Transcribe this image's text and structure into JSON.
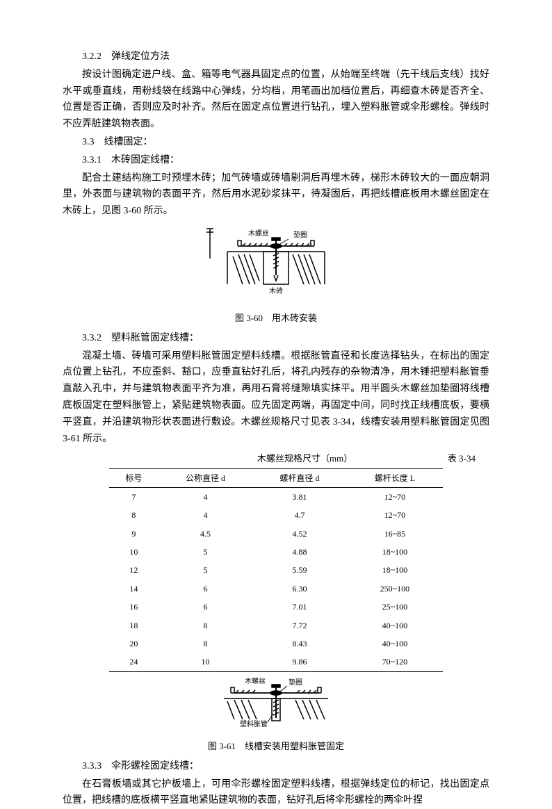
{
  "s322": {
    "heading": "3.2.2　弹线定位方法",
    "p1": "按设计图确定进户线、盒、箱等电气器具固定点的位置，从始端至终端（先干线后支线）找好水平或垂直线，用粉线袋在线路中心弹线，分均档，用笔画出加档位置后，再细查木砖是否齐全、位置是否正确，否则应及时补齐。然后在固定点位置进行钻孔，埋入塑料胀管或伞形螺栓。弹线时不应弄脏建筑物表面。"
  },
  "s33": {
    "heading": "3.3　线槽固定："
  },
  "s331": {
    "heading": "3.3.1　木砖固定线槽：",
    "p1": "配合土建结构施工时预埋木砖；加气砖墙或砖墙剔洞后再埋木砖，梯形木砖较大的一面应朝洞里，外表面与建筑物的表面平齐，然后用水泥砂浆抹平，待凝固后，再把线槽底板用木螺丝固定在木砖上，见图 3-60 所示。"
  },
  "fig360": {
    "label_screw": "木螺丝",
    "label_pad": "垫圈",
    "label_brick": "木砖",
    "caption": "图 3-60　用木砖安装",
    "colors": {
      "stroke": "#000000",
      "hatch": "#000000"
    }
  },
  "s332": {
    "heading": "3.3.2　塑料胀管固定线槽：",
    "p1": "混凝土墙、砖墙可采用塑料胀管固定塑料线槽。根据胀管直径和长度选择钻头，在标出的固定点位置上钻孔，不应歪斜、豁口，应垂直钻好孔后，将孔内残存的杂物清净，用木锤把塑料胀管垂直敲入孔中，并与建筑物表面平齐为准，再用石膏将缝隙填实抹平。用半圆头木螺丝加垫圈将线槽底板固定在塑料胀管上，紧贴建筑物表面。应先固定两端，再固定中间，同时找正线槽底板，要横平竖直，并沿建筑物形状表面进行敷设。木螺丝规格尺寸见表 3-34，线槽安装用塑料胀管固定见图 3-61 所示。"
  },
  "table334": {
    "title": "木螺丝规格尺寸（mm）",
    "number": "表 3-34",
    "columns": [
      "标号",
      "公称直径 d",
      "螺杆直径 d",
      "螺杆长度 L"
    ],
    "rows": [
      [
        "7",
        "4",
        "3.81",
        "12~70"
      ],
      [
        "8",
        "4",
        "4.7",
        "12~70"
      ],
      [
        "9",
        "4.5",
        "4.52",
        "16~85"
      ],
      [
        "10",
        "5",
        "4.88",
        "18~100"
      ],
      [
        "12",
        "5",
        "5.59",
        "18~100"
      ],
      [
        "14",
        "6",
        "6.30",
        "250~100"
      ],
      [
        "16",
        "6",
        "7.01",
        "25~100"
      ],
      [
        "18",
        "8",
        "7.72",
        "40~100"
      ],
      [
        "20",
        "8",
        "8.43",
        "40~100"
      ],
      [
        "24",
        "10",
        "9.86",
        "70~120"
      ]
    ],
    "col_widths": [
      "22%",
      "26%",
      "26%",
      "26%"
    ]
  },
  "fig361": {
    "label_screw": "木螺丝",
    "label_pad": "垫圈",
    "label_tube": "塑料胀管",
    "caption": "图 3-61　线槽安装用塑料胀管固定",
    "colors": {
      "stroke": "#000000"
    }
  },
  "s333": {
    "heading": "3.3.3　伞形螺栓固定线槽：",
    "p1": "在石膏板墙或其它护板墙上，可用伞形螺栓固定塑料线槽，根据弹线定位的标记，找出固定点位置，把线槽的底板横平竖直地紧贴建筑物的表面，钻好孔后将伞形螺栓的两伞叶捏"
  }
}
